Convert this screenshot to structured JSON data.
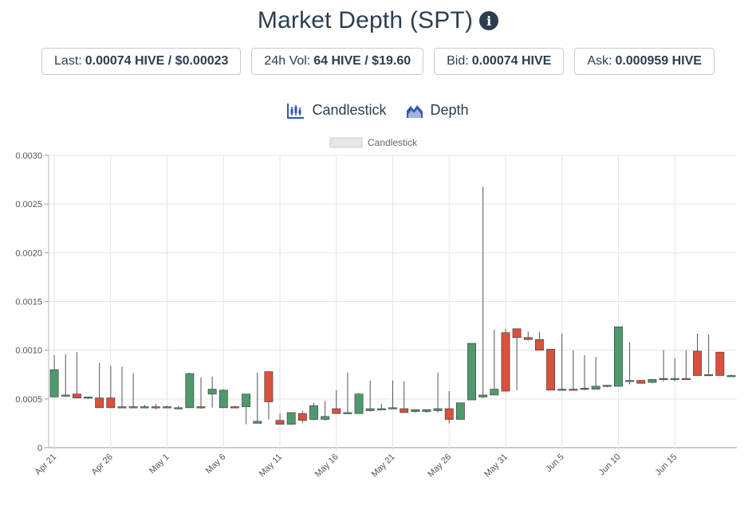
{
  "header": {
    "title": "Market Depth (SPT)",
    "info_icon": "info-icon"
  },
  "stats": [
    {
      "label": "Last:",
      "value": "0.00074 HIVE / $0.00023"
    },
    {
      "label": "24h Vol:",
      "value": "64 HIVE / $19.60"
    },
    {
      "label": "Bid:",
      "value": "0.00074 HIVE"
    },
    {
      "label": "Ask:",
      "value": "0.000959 HIVE"
    }
  ],
  "tabs": [
    {
      "label": "Candlestick",
      "icon": "candlestick-icon"
    },
    {
      "label": "Depth",
      "icon": "depth-icon"
    }
  ],
  "colors": {
    "up": "#4e9a6e",
    "down": "#d9503b",
    "wick": "#555555",
    "grid": "#e5e5e5",
    "text": "#2c3e50"
  },
  "chart_data": {
    "type": "candlestick",
    "legend": [
      "Candlestick"
    ],
    "legend_position": "top-center",
    "grid": true,
    "ylim": [
      0,
      0.003
    ],
    "yticks": [
      "0",
      "0.0005",
      "0.0010",
      "0.0015",
      "0.0020",
      "0.0025",
      "0.0030"
    ],
    "xtick_labels": [
      "Apr 21",
      "Apr 26",
      "May 1",
      "May 6",
      "May 11",
      "May 16",
      "May 21",
      "May 26",
      "May 31",
      "Jun 5",
      "Jun 10",
      "Jun 15"
    ],
    "xtick_step": 5,
    "candles": [
      {
        "date": "Apr 21",
        "o": 0.00052,
        "h": 0.00095,
        "l": 0.00052,
        "c": 0.0008
      },
      {
        "date": "Apr 22",
        "o": 0.00053,
        "h": 0.00096,
        "l": 0.00052,
        "c": 0.00054
      },
      {
        "date": "Apr 23",
        "o": 0.00055,
        "h": 0.00098,
        "l": 0.00051,
        "c": 0.00051
      },
      {
        "date": "Apr 24",
        "o": 0.00051,
        "h": 0.00051,
        "l": 0.0005,
        "c": 0.00052
      },
      {
        "date": "Apr 25",
        "o": 0.00051,
        "h": 0.00087,
        "l": 0.00041,
        "c": 0.00041
      },
      {
        "date": "Apr 26",
        "o": 0.00051,
        "h": 0.00084,
        "l": 0.00041,
        "c": 0.00041
      },
      {
        "date": "Apr 27",
        "o": 0.00041,
        "h": 0.00083,
        "l": 0.00041,
        "c": 0.00042
      },
      {
        "date": "Apr 28",
        "o": 0.00041,
        "h": 0.00076,
        "l": 0.00041,
        "c": 0.00042
      },
      {
        "date": "Apr 29",
        "o": 0.00041,
        "h": 0.00044,
        "l": 0.00041,
        "c": 0.00042
      },
      {
        "date": "Apr 30",
        "o": 0.00042,
        "h": 0.00045,
        "l": 0.00039,
        "c": 0.00041
      },
      {
        "date": "May 1",
        "o": 0.00041,
        "h": 0.00043,
        "l": 0.00041,
        "c": 0.00042
      },
      {
        "date": "May 2",
        "o": 0.00041,
        "h": 0.00043,
        "l": 0.0004,
        "c": 0.00041
      },
      {
        "date": "May 3",
        "o": 0.00041,
        "h": 0.00077,
        "l": 0.00041,
        "c": 0.00076
      },
      {
        "date": "May 4",
        "o": 0.00042,
        "h": 0.00072,
        "l": 0.0004,
        "c": 0.00041
      },
      {
        "date": "May 5",
        "o": 0.00055,
        "h": 0.00073,
        "l": 0.00041,
        "c": 0.0006
      },
      {
        "date": "May 6",
        "o": 0.00041,
        "h": 0.0006,
        "l": 0.00041,
        "c": 0.00059
      },
      {
        "date": "May 7",
        "o": 0.00042,
        "h": 0.00043,
        "l": 0.00041,
        "c": 0.00041
      },
      {
        "date": "May 8",
        "o": 0.00042,
        "h": 0.00055,
        "l": 0.00024,
        "c": 0.00055
      },
      {
        "date": "May 9",
        "o": 0.00025,
        "h": 0.00077,
        "l": 0.00025,
        "c": 0.00027
      },
      {
        "date": "May 10",
        "o": 0.00078,
        "h": 0.00078,
        "l": 0.00029,
        "c": 0.00047
      },
      {
        "date": "May 11",
        "o": 0.00028,
        "h": 0.00035,
        "l": 0.00025,
        "c": 0.00024
      },
      {
        "date": "May 12",
        "o": 0.00024,
        "h": 0.00036,
        "l": 0.00024,
        "c": 0.00036
      },
      {
        "date": "May 13",
        "o": 0.00035,
        "h": 0.00038,
        "l": 0.00025,
        "c": 0.00028
      },
      {
        "date": "May 14",
        "o": 0.00029,
        "h": 0.00046,
        "l": 0.00028,
        "c": 0.00043
      },
      {
        "date": "May 15",
        "o": 0.00029,
        "h": 0.00048,
        "l": 0.00028,
        "c": 0.00032
      },
      {
        "date": "May 16",
        "o": 0.0004,
        "h": 0.00059,
        "l": 0.00035,
        "c": 0.00035
      },
      {
        "date": "May 17",
        "o": 0.00035,
        "h": 0.00077,
        "l": 0.00035,
        "c": 0.00036
      },
      {
        "date": "May 18",
        "o": 0.00035,
        "h": 0.00056,
        "l": 0.00035,
        "c": 0.00055
      },
      {
        "date": "May 19",
        "o": 0.00038,
        "h": 0.00069,
        "l": 0.00037,
        "c": 0.0004
      },
      {
        "date": "May 20",
        "o": 0.00039,
        "h": 0.00045,
        "l": 0.00039,
        "c": 0.0004
      },
      {
        "date": "May 21",
        "o": 0.0004,
        "h": 0.00069,
        "l": 0.0004,
        "c": 0.00041
      },
      {
        "date": "May 22",
        "o": 0.0004,
        "h": 0.00068,
        "l": 0.00036,
        "c": 0.00036
      },
      {
        "date": "May 23",
        "o": 0.00037,
        "h": 0.00039,
        "l": 0.00036,
        "c": 0.00039
      },
      {
        "date": "May 24",
        "o": 0.00037,
        "h": 0.00039,
        "l": 0.00036,
        "c": 0.00039
      },
      {
        "date": "May 25",
        "o": 0.00038,
        "h": 0.00077,
        "l": 0.00036,
        "c": 0.0004
      },
      {
        "date": "May 26",
        "o": 0.0004,
        "h": 0.00058,
        "l": 0.00025,
        "c": 0.00029
      },
      {
        "date": "May 27",
        "o": 0.00029,
        "h": 0.00046,
        "l": 0.00029,
        "c": 0.00046
      },
      {
        "date": "May 28",
        "o": 0.00049,
        "h": 0.00107,
        "l": 0.00049,
        "c": 0.00107
      },
      {
        "date": "May 29",
        "o": 0.00052,
        "h": 0.00268,
        "l": 0.00051,
        "c": 0.00054
      },
      {
        "date": "May 30",
        "o": 0.00054,
        "h": 0.00121,
        "l": 0.00054,
        "c": 0.0006
      },
      {
        "date": "May 31",
        "o": 0.00118,
        "h": 0.00122,
        "l": 0.00058,
        "c": 0.00058
      },
      {
        "date": "Jun 1",
        "o": 0.00122,
        "h": 0.00122,
        "l": 0.00059,
        "c": 0.00113
      },
      {
        "date": "Jun 2",
        "o": 0.00113,
        "h": 0.00119,
        "l": 0.0011,
        "c": 0.00111
      },
      {
        "date": "Jun 3",
        "o": 0.00111,
        "h": 0.00119,
        "l": 0.001,
        "c": 0.001
      },
      {
        "date": "Jun 4",
        "o": 0.00101,
        "h": 0.00101,
        "l": 0.00059,
        "c": 0.00059
      },
      {
        "date": "Jun 5",
        "o": 0.00059,
        "h": 0.00117,
        "l": 0.00059,
        "c": 0.0006
      },
      {
        "date": "Jun 6",
        "o": 0.0006,
        "h": 0.001,
        "l": 0.00059,
        "c": 0.00059
      },
      {
        "date": "Jun 7",
        "o": 0.0006,
        "h": 0.00095,
        "l": 0.00059,
        "c": 0.00061
      },
      {
        "date": "Jun 8",
        "o": 0.0006,
        "h": 0.00093,
        "l": 0.0006,
        "c": 0.00063
      },
      {
        "date": "Jun 9",
        "o": 0.00063,
        "h": 0.00064,
        "l": 0.00062,
        "c": 0.00064
      },
      {
        "date": "Jun 10",
        "o": 0.00063,
        "h": 0.00124,
        "l": 0.00063,
        "c": 0.00124
      },
      {
        "date": "Jun 11",
        "o": 0.00069,
        "h": 0.00108,
        "l": 0.00065,
        "c": 0.00069
      },
      {
        "date": "Jun 12",
        "o": 0.00069,
        "h": 0.00069,
        "l": 0.00066,
        "c": 0.00066
      },
      {
        "date": "Jun 13",
        "o": 0.00067,
        "h": 0.0007,
        "l": 0.00066,
        "c": 0.0007
      },
      {
        "date": "Jun 14",
        "o": 0.0007,
        "h": 0.001,
        "l": 0.00068,
        "c": 0.00071
      },
      {
        "date": "Jun 15",
        "o": 0.0007,
        "h": 0.00092,
        "l": 0.00068,
        "c": 0.00071
      },
      {
        "date": "Jun 16",
        "o": 0.00071,
        "h": 0.001,
        "l": 0.0007,
        "c": 0.0007
      },
      {
        "date": "Jun 17",
        "o": 0.00099,
        "h": 0.00117,
        "l": 0.00074,
        "c": 0.00074
      },
      {
        "date": "Jun 18",
        "o": 0.00074,
        "h": 0.00116,
        "l": 0.00074,
        "c": 0.00075
      },
      {
        "date": "Jun 19",
        "o": 0.00098,
        "h": 0.00098,
        "l": 0.00074,
        "c": 0.00074
      },
      {
        "date": "Jun 20",
        "o": 0.00074,
        "h": 0.00075,
        "l": 0.00074,
        "c": 0.00074
      }
    ]
  }
}
